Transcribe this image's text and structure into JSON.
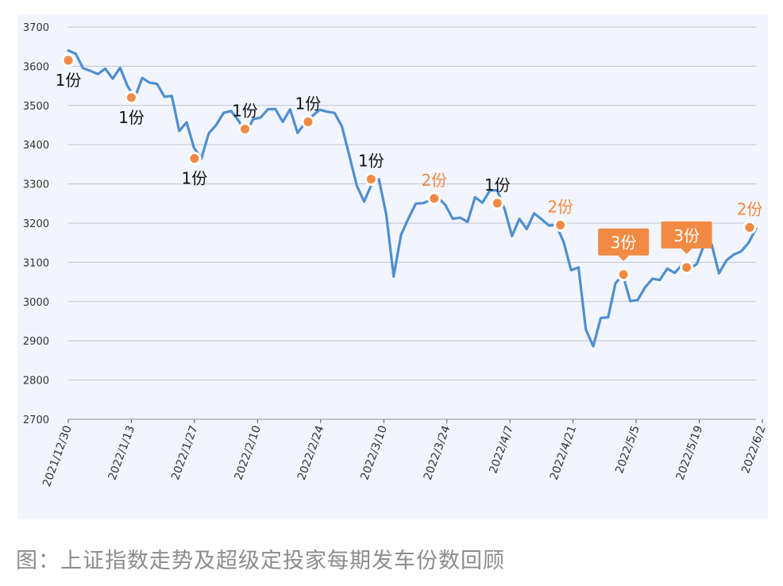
{
  "caption": "图：上证指数走势及超级定投家每期发车份数回顾",
  "chart_data": {
    "type": "line",
    "title": "",
    "xlabel": "",
    "ylabel": "",
    "ylim": [
      2700,
      3700
    ],
    "yticks": [
      2700,
      2800,
      2900,
      3000,
      3100,
      3200,
      3300,
      3400,
      3500,
      3600,
      3700
    ],
    "grid": "horizontal",
    "x_tick_labels": [
      "2021/12/30",
      "2022/1/13",
      "2022/1/27",
      "2022/2/10",
      "2022/2/24",
      "2022/3/10",
      "2022/3/24",
      "2022/4/7",
      "2022/4/21",
      "2022/5/5",
      "2022/5/19",
      "2022/6/2"
    ],
    "series": [
      {
        "name": "",
        "color": "#4f8fd0",
        "values": [
          3640,
          3632,
          3595,
          3588,
          3580,
          3594,
          3568,
          3596,
          3550,
          3520,
          3570,
          3558,
          3555,
          3522,
          3524,
          3435,
          3457,
          3392,
          3365,
          3429,
          3450,
          3481,
          3486,
          3462,
          3430,
          3465,
          3469,
          3490,
          3491,
          3458,
          3490,
          3430,
          3455,
          3473,
          3489,
          3484,
          3481,
          3447,
          3373,
          3296,
          3255,
          3298,
          3312,
          3222,
          3064,
          3170,
          3212,
          3250,
          3251,
          3259,
          3265,
          3246,
          3211,
          3214,
          3203,
          3266,
          3252,
          3283,
          3284,
          3236,
          3167,
          3211,
          3185,
          3225,
          3210,
          3194,
          3195,
          3151,
          3080,
          3087,
          2928,
          2886,
          2958,
          2960,
          3047,
          3068,
          3001,
          3004,
          3036,
          3058,
          3055,
          3084,
          3073,
          3094,
          3084,
          3096,
          3146,
          3146,
          3072,
          3105,
          3120,
          3128,
          3150,
          3186
        ]
      }
    ],
    "buy_points": [
      {
        "index": 0,
        "y": 3615,
        "label": "1份",
        "style": "plain-black"
      },
      {
        "index": 10,
        "y": 3520,
        "label": "1份",
        "style": "plain-black"
      },
      {
        "index": 20,
        "y": 3365,
        "label": "1份",
        "style": "plain-black"
      },
      {
        "index": 28,
        "y": 3440,
        "label": "1份",
        "style": "plain-black"
      },
      {
        "index": 38,
        "y": 3458,
        "label": "1份",
        "style": "plain-black"
      },
      {
        "index": 48,
        "y": 3312,
        "label": "1份",
        "style": "plain-black"
      },
      {
        "index": 58,
        "y": 3263,
        "label": "2份",
        "style": "plain-orange"
      },
      {
        "index": 68,
        "y": 3251,
        "label": "1份",
        "style": "plain-black"
      },
      {
        "index": 78,
        "y": 3195,
        "label": "2份",
        "style": "plain-orange"
      },
      {
        "index": 88,
        "y": 3069,
        "label": "3份",
        "style": "callout"
      },
      {
        "index": 98,
        "y": 3087,
        "label": "3份",
        "style": "callout"
      },
      {
        "index": 108,
        "y": 3189,
        "label": "2份",
        "style": "plain-orange"
      }
    ],
    "colors": {
      "line": "#4f8fd0",
      "marker": "#f28a43",
      "buy_label_black": "#111111",
      "buy_label_orange": "#f28a43",
      "callout_bg": "#f28a43",
      "grid": "#bfc4d2"
    }
  }
}
